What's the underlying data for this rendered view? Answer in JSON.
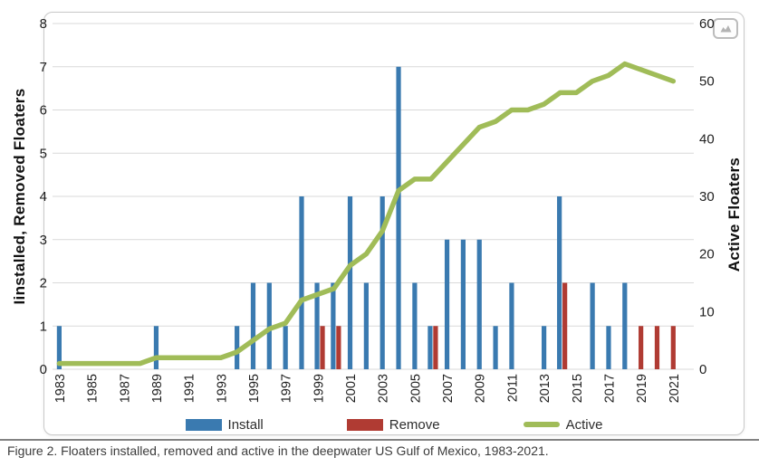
{
  "caption": "Figure 2. Floaters installed, removed and active in the deepwater US Gulf of Mexico, 1983-2021.",
  "badge": {
    "icon": "image-badge"
  },
  "chart_data": {
    "type": "combo-bar-line",
    "title": "",
    "x": [
      1983,
      1984,
      1985,
      1986,
      1987,
      1988,
      1989,
      1990,
      1991,
      1992,
      1993,
      1994,
      1995,
      1996,
      1997,
      1998,
      1999,
      2000,
      2001,
      2002,
      2003,
      2004,
      2005,
      2006,
      2007,
      2008,
      2009,
      2010,
      2011,
      2012,
      2013,
      2014,
      2015,
      2016,
      2017,
      2018,
      2019,
      2020,
      2021
    ],
    "x_tick_labels": [
      "1983",
      "1985",
      "1987",
      "1989",
      "1991",
      "1993",
      "1995",
      "1997",
      "1999",
      "2001",
      "2003",
      "2005",
      "2007",
      "2009",
      "2011",
      "2013",
      "2015",
      "2017",
      "2019",
      "2021"
    ],
    "left_axis": {
      "title": "Iinstalled, Removed Floaters",
      "min": 0,
      "max": 8,
      "tick_step": 1
    },
    "right_axis": {
      "title": "Active Floaters",
      "min": 0,
      "max": 60,
      "tick_step": 10
    },
    "grid": "on",
    "grid_color": "#d9d9d9",
    "legend_position": "bottom",
    "series": [
      {
        "name": "Install",
        "type": "bar",
        "axis": "left",
        "color": "#3a7ab0",
        "values": [
          1,
          0,
          0,
          0,
          0,
          0,
          1,
          0,
          0,
          0,
          0,
          1,
          2,
          2,
          1,
          4,
          2,
          2,
          4,
          2,
          4,
          7,
          2,
          1,
          3,
          3,
          3,
          1,
          2,
          0,
          1,
          4,
          0,
          2,
          1,
          2,
          0,
          0,
          0
        ]
      },
      {
        "name": "Remove",
        "type": "bar",
        "axis": "left",
        "color": "#b03b33",
        "values": [
          0,
          0,
          0,
          0,
          0,
          0,
          0,
          0,
          0,
          0,
          0,
          0,
          0,
          0,
          0,
          0,
          1,
          1,
          0,
          0,
          0,
          0,
          0,
          1,
          0,
          0,
          0,
          0,
          0,
          0,
          0,
          2,
          0,
          0,
          0,
          0,
          1,
          1,
          1
        ]
      },
      {
        "name": "Active",
        "type": "line",
        "axis": "right",
        "color": "#a0bc58",
        "values": [
          1,
          1,
          1,
          1,
          1,
          1,
          2,
          2,
          2,
          2,
          2,
          3,
          5,
          7,
          8,
          12,
          13,
          14,
          18,
          20,
          24,
          31,
          33,
          33,
          36,
          39,
          42,
          43,
          45,
          45,
          46,
          48,
          48,
          50,
          51,
          53,
          52,
          51,
          50
        ]
      }
    ]
  }
}
